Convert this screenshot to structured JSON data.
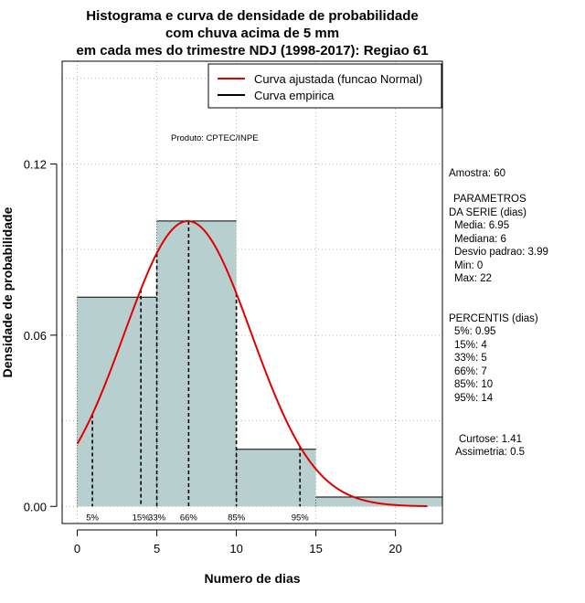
{
  "chart_data": {
    "type": "histogram",
    "title_lines": [
      "Histograma e curva de densidade de probabilidade",
      "com chuva acima de 5 mm",
      "em cada mes do trimestre NDJ (1998-2017): Regiao 61"
    ],
    "xlabel": "Numero de dias",
    "ylabel": "Densidade de probabilidade",
    "xlim": [
      -0.95,
      22.95
    ],
    "ylim": [
      -0.006,
      0.156
    ],
    "x_ticks": [
      0,
      5,
      10,
      15,
      20
    ],
    "y_ticks": [
      0.0,
      0.06,
      0.12
    ],
    "y_tick_labels": [
      "0.00",
      "0.06",
      "0.12"
    ],
    "grid": true,
    "bins": [
      {
        "x0": 0,
        "x1": 5,
        "density": 0.0733
      },
      {
        "x0": 5,
        "x1": 10,
        "density": 0.1
      },
      {
        "x0": 10,
        "x1": 15,
        "density": 0.02
      },
      {
        "x0": 15,
        "x1": 23,
        "density": 0.0033
      }
    ],
    "bar_color": "#b8cfcf",
    "normal_fit": {
      "mean": 6.95,
      "sd": 3.99,
      "x_from": 0,
      "x_to": 22,
      "color": "#e00000"
    },
    "empirical_color": "#000000",
    "percentiles": [
      {
        "label": "5%",
        "value": 0.95
      },
      {
        "label": "15%",
        "value": 4
      },
      {
        "label": "33%",
        "value": 5
      },
      {
        "label": "66%",
        "value": 7
      },
      {
        "label": "85%",
        "value": 10
      },
      {
        "label": "95%",
        "value": 14
      }
    ],
    "legend": {
      "position": "top-right",
      "entries": [
        {
          "label": "Curva ajustada (funcao Normal)",
          "color": "#e00000"
        },
        {
          "label": "Curva empirica",
          "color": "#000000"
        }
      ]
    },
    "annotation": "Produto: CPTEC/INPE"
  },
  "side_panel": {
    "sample": "Amostra: 60",
    "params_header_1": "PARAMETROS",
    "params_header_2": "DA SERIE (dias)",
    "media": "Media: 6.95",
    "mediana": "Mediana: 6",
    "desvio": "Desvio padrao: 3.99",
    "min": "Min: 0",
    "max": "Max: 22",
    "percentis_header": "PERCENTIS (dias)",
    "p5": "5%: 0.95",
    "p15": "15%: 4",
    "p33": "33%: 5",
    "p66": "66%: 7",
    "p85": "85%: 10",
    "p95": "95%: 14",
    "curtose": "Curtose: 1.41",
    "assimetria": "Assimetria: 0.5"
  }
}
